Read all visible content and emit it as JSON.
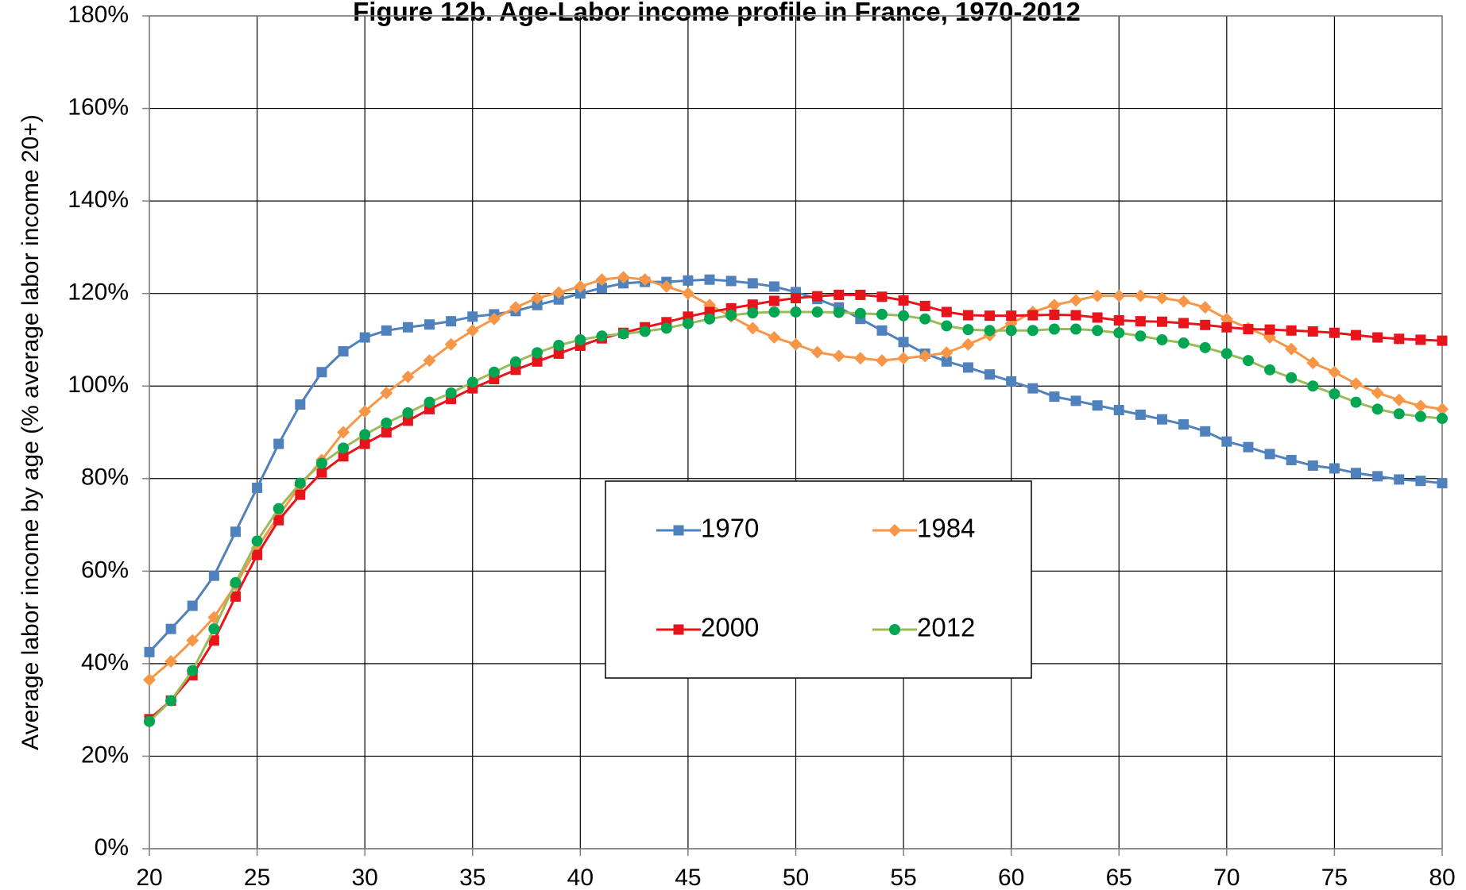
{
  "chart_data": {
    "type": "line",
    "title": "Figure 12b. Age-Labor income profile in France, 1970-2012",
    "xlabel": "",
    "ylabel": "Average labor income by age (% average labor income 20+)",
    "xlim": [
      20,
      80
    ],
    "ylim": [
      0,
      180
    ],
    "x_ticks": [
      "20",
      "25",
      "30",
      "35",
      "40",
      "45",
      "50",
      "55",
      "60",
      "65",
      "70",
      "75",
      "80"
    ],
    "y_ticks": [
      "0%",
      "20%",
      "40%",
      "60%",
      "80%",
      "100%",
      "120%",
      "140%",
      "160%",
      "180%"
    ],
    "grid": true,
    "legend_position": "center",
    "x": [
      20,
      21,
      22,
      23,
      24,
      25,
      26,
      27,
      28,
      29,
      30,
      31,
      32,
      33,
      34,
      35,
      36,
      37,
      38,
      39,
      40,
      41,
      42,
      43,
      44,
      45,
      46,
      47,
      48,
      49,
      50,
      51,
      52,
      53,
      54,
      55,
      56,
      57,
      58,
      59,
      60,
      61,
      62,
      63,
      64,
      65,
      66,
      67,
      68,
      69,
      70,
      71,
      72,
      73,
      74,
      75,
      76,
      77,
      78,
      79,
      80
    ],
    "series": [
      {
        "name": "1970",
        "color": "#4F81BD",
        "marker": "square",
        "values": [
          42.5,
          47.5,
          52.5,
          59,
          68.5,
          78,
          87.5,
          96,
          103,
          107.5,
          110.5,
          112,
          112.7,
          113.3,
          114,
          115,
          115.5,
          116.2,
          117.5,
          118.7,
          120,
          121.2,
          122.2,
          122.5,
          122.5,
          122.8,
          123,
          122.7,
          122.2,
          121.5,
          120.3,
          118.8,
          117,
          114.5,
          112,
          109.5,
          107,
          105.3,
          104,
          102.5,
          101,
          99.5,
          97.7,
          96.8,
          95.8,
          94.8,
          93.8,
          92.8,
          91.7,
          90.2,
          88,
          86.8,
          85.3,
          84,
          82.8,
          82.2,
          81.2,
          80.5,
          79.8,
          79.5,
          79
        ]
      },
      {
        "name": "1984",
        "color": "#F79646",
        "marker": "diamond",
        "values": [
          36.5,
          40.5,
          45,
          50,
          57,
          65,
          72,
          78.5,
          84,
          90,
          94.5,
          98.5,
          102,
          105.5,
          109,
          112,
          114.5,
          117,
          119,
          120.2,
          121.5,
          123,
          123.5,
          123,
          121.5,
          120,
          117.5,
          115,
          112.5,
          110.5,
          109,
          107.3,
          106.5,
          106,
          105.5,
          106,
          106.5,
          107.2,
          109,
          111,
          113.5,
          116,
          117.5,
          118.5,
          119.5,
          119.5,
          119.5,
          119,
          118.3,
          117,
          114.5,
          112.5,
          110.5,
          108,
          105,
          103,
          100.5,
          98.5,
          97,
          95.7,
          95
        ]
      },
      {
        "name": "2000",
        "color": "#E8141B",
        "marker": "square",
        "values": [
          28,
          32,
          37.5,
          45,
          54.5,
          63.5,
          71,
          76.5,
          81.3,
          84.8,
          87.5,
          90,
          92.5,
          95,
          97.2,
          99.5,
          101.5,
          103.5,
          105.3,
          107,
          108.7,
          110.3,
          111.5,
          112.7,
          113.8,
          115,
          116,
          116.8,
          117.6,
          118.4,
          119,
          119.4,
          119.7,
          119.7,
          119.3,
          118.5,
          117.3,
          116,
          115.3,
          115.2,
          115.2,
          115.3,
          115.4,
          115.3,
          114.8,
          114.2,
          114,
          113.9,
          113.6,
          113.2,
          112.7,
          112.3,
          112.2,
          112,
          111.8,
          111.5,
          111,
          110.5,
          110.2,
          110,
          109.8
        ]
      },
      {
        "name": "2012",
        "color": "#00A651",
        "line_color": "#9BBB59",
        "marker": "circle",
        "values": [
          27.5,
          32,
          38.5,
          47.5,
          57.5,
          66.5,
          73.5,
          79,
          83.3,
          86.6,
          89.5,
          92,
          94.2,
          96.5,
          98.5,
          100.8,
          103,
          105.2,
          107.2,
          108.8,
          110,
          110.8,
          111.3,
          111.8,
          112.5,
          113.5,
          114.5,
          115.3,
          115.8,
          116,
          116,
          116,
          115.9,
          115.7,
          115.5,
          115.2,
          114.5,
          113,
          112.2,
          112,
          112,
          112,
          112.3,
          112.3,
          112,
          111.5,
          110.8,
          110,
          109.3,
          108.3,
          107,
          105.5,
          103.5,
          101.8,
          100,
          98.3,
          96.5,
          95,
          94,
          93.4,
          93
        ]
      }
    ]
  }
}
